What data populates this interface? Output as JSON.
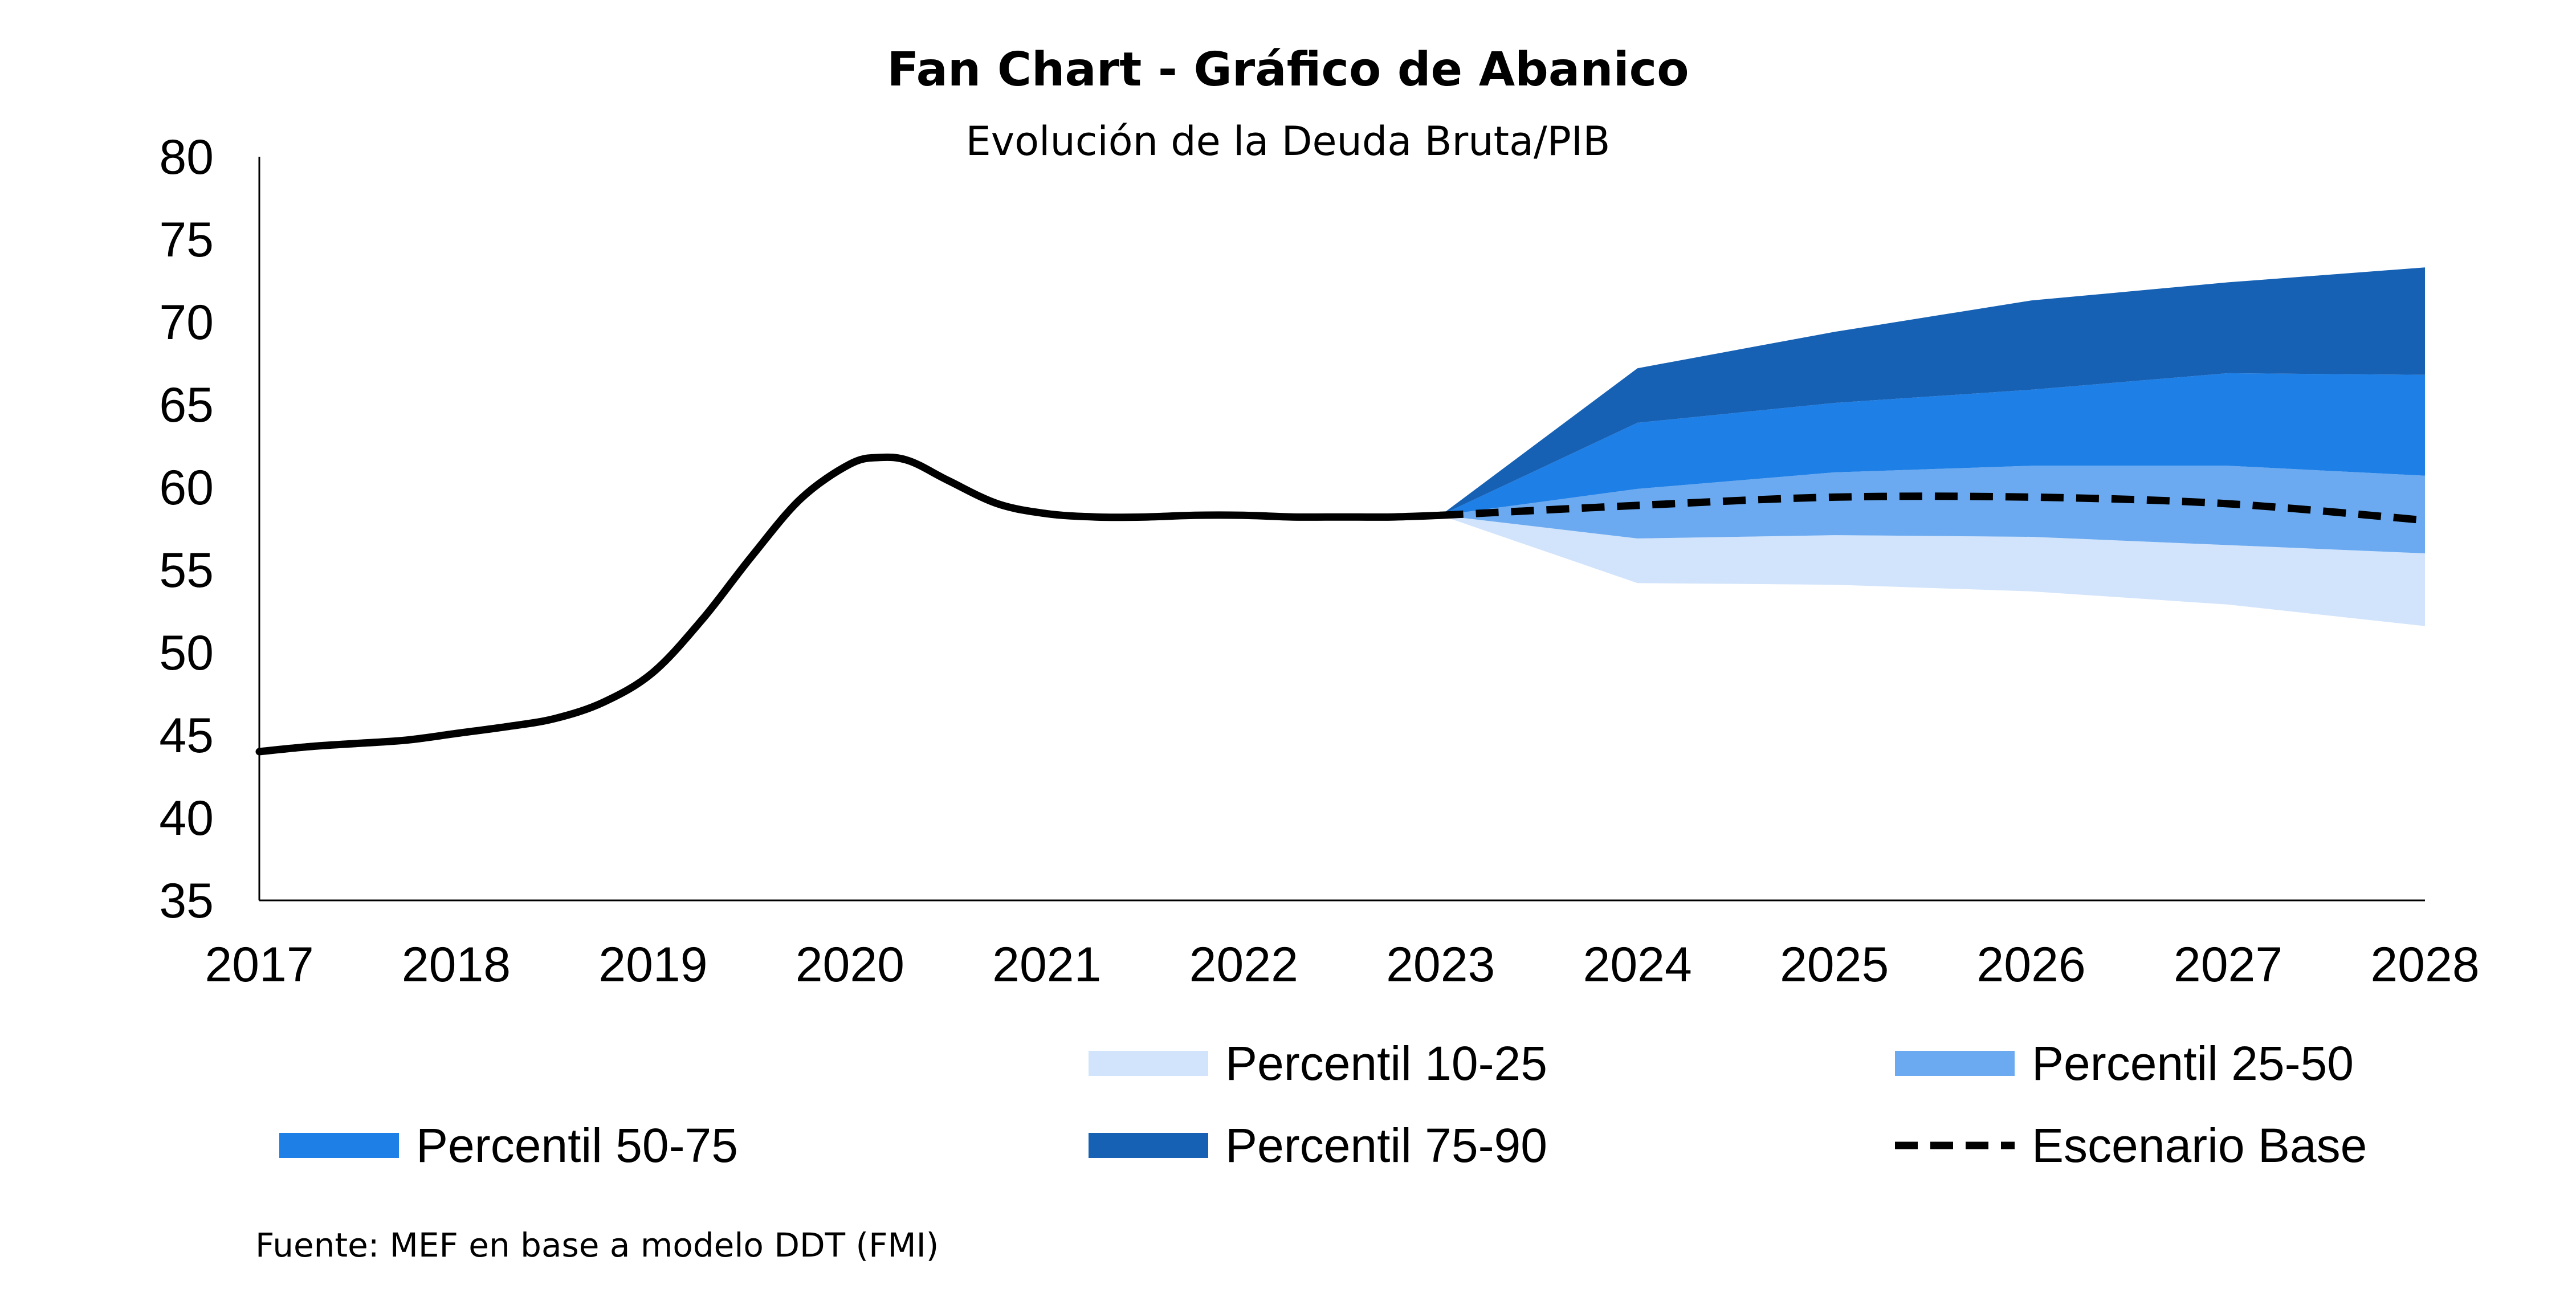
{
  "chart_data": {
    "type": "area",
    "title": "Fan Chart - Gráfico de Abanico",
    "subtitle": "Evolución de la Deuda Bruta/PIB",
    "xlabel": "",
    "ylabel": "",
    "categories": [
      "2017",
      "2018",
      "2019",
      "2020",
      "2021",
      "2022",
      "2023",
      "2024",
      "2025",
      "2026",
      "2027",
      "2028"
    ],
    "ylim": [
      35,
      80
    ],
    "yticks": [
      35,
      40,
      45,
      50,
      55,
      60,
      65,
      70,
      75,
      80
    ],
    "grid": false,
    "legend_position": "bottom",
    "historical": {
      "x": [
        2017.0,
        2017.25,
        2017.5,
        2017.75,
        2018.0,
        2018.25,
        2018.5,
        2018.75,
        2019.0,
        2019.25,
        2019.5,
        2019.75,
        2020.0,
        2020.15,
        2020.3,
        2020.5,
        2020.75,
        2021.0,
        2021.25,
        2021.5,
        2021.75,
        2022.0,
        2022.25,
        2022.5,
        2022.75,
        2023.0
      ],
      "y": [
        44.0,
        44.3,
        44.5,
        44.7,
        45.1,
        45.5,
        46.0,
        47.0,
        48.8,
        52.0,
        55.8,
        59.3,
        61.4,
        61.8,
        61.6,
        60.4,
        59.0,
        58.4,
        58.2,
        58.2,
        58.3,
        58.3,
        58.2,
        58.2,
        58.2,
        58.3
      ]
    },
    "fan_x": [
      "2023",
      "2024",
      "2025",
      "2026",
      "2027",
      "2028"
    ],
    "bands": [
      {
        "name": "Percentil 10-25",
        "color": "#d2e4fb",
        "lower": [
          58.3,
          54.2,
          54.1,
          53.7,
          52.9,
          51.6
        ],
        "upper": [
          58.3,
          56.9,
          57.1,
          57.0,
          56.5,
          56.0
        ]
      },
      {
        "name": "Percentil 25-50",
        "color": "#6baaf0",
        "lower": [
          58.3,
          56.9,
          57.1,
          57.0,
          56.5,
          56.0
        ],
        "upper": [
          58.3,
          59.9,
          60.9,
          61.3,
          61.3,
          60.7
        ]
      },
      {
        "name": "Percentil 50-75",
        "color": "#1e7fe6",
        "lower": [
          58.3,
          59.9,
          60.9,
          61.3,
          61.3,
          60.7
        ],
        "upper": [
          58.3,
          63.9,
          65.1,
          65.9,
          66.9,
          66.8
        ]
      },
      {
        "name": "Percentil 75-90",
        "color": "#1761b5",
        "lower": [
          58.3,
          63.9,
          65.1,
          65.9,
          66.9,
          66.8
        ],
        "upper": [
          58.3,
          67.2,
          69.4,
          71.3,
          72.4,
          73.3
        ]
      }
    ],
    "base_scenario": {
      "name": "Escenario Base",
      "x": [
        "2023",
        "2024",
        "2025",
        "2026",
        "2027",
        "2028"
      ],
      "y": [
        58.3,
        58.9,
        59.4,
        59.4,
        59.0,
        58.0
      ]
    },
    "legend": [
      {
        "label": "Percentil 10-25",
        "kind": "swatch",
        "color": "#d2e4fb"
      },
      {
        "label": "Percentil 25-50",
        "kind": "swatch",
        "color": "#6baaf0"
      },
      {
        "label": "Percentil 50-75",
        "kind": "swatch",
        "color": "#1e7fe6"
      },
      {
        "label": "Percentil 75-90",
        "kind": "swatch",
        "color": "#1761b5"
      },
      {
        "label": "Escenario Base",
        "kind": "dashed",
        "color": "#000000"
      }
    ],
    "source": "Fuente: MEF en base a modelo DDT (FMI)"
  }
}
